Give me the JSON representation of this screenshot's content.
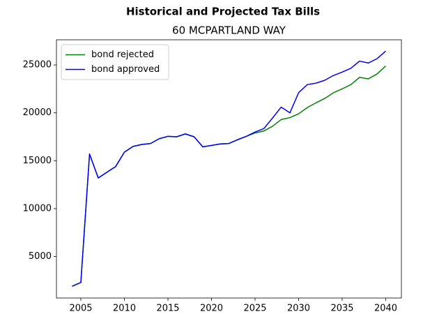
{
  "chart_data": {
    "type": "line",
    "title": "Historical and Projected Tax Bills",
    "subtitle": "60 MCPARTLAND WAY",
    "x": [
      2004,
      2005,
      2006,
      2007,
      2008,
      2009,
      2010,
      2011,
      2012,
      2013,
      2014,
      2015,
      2016,
      2017,
      2018,
      2019,
      2020,
      2021,
      2022,
      2023,
      2024,
      2025,
      2026,
      2027,
      2028,
      2029,
      2030,
      2031,
      2032,
      2033,
      2034,
      2035,
      2036,
      2037,
      2038,
      2039,
      2040
    ],
    "series": [
      {
        "name": "bond rejected",
        "color": "#008000",
        "values": [
          1900,
          2300,
          15700,
          13200,
          13800,
          14400,
          15900,
          16500,
          16700,
          16800,
          17300,
          17550,
          17500,
          17800,
          17500,
          16450,
          16600,
          16750,
          16800,
          17200,
          17550,
          17900,
          18100,
          18600,
          19300,
          19500,
          19900,
          20550,
          21050,
          21500,
          22100,
          22500,
          22950,
          23700,
          23550,
          24050,
          24900
        ]
      },
      {
        "name": "bond approved",
        "color": "#0000ff",
        "values": [
          1900,
          2300,
          15700,
          13200,
          13800,
          14400,
          15900,
          16500,
          16700,
          16800,
          17300,
          17550,
          17500,
          17800,
          17500,
          16450,
          16600,
          16750,
          16800,
          17200,
          17550,
          18000,
          18350,
          19450,
          20600,
          20000,
          22100,
          22950,
          23100,
          23400,
          23900,
          24250,
          24650,
          25400,
          25200,
          25650,
          26450
        ]
      }
    ],
    "xlim": [
      2002.2,
      2041.8
    ],
    "xticks": [
      2005,
      2010,
      2015,
      2020,
      2025,
      2030,
      2035,
      2040
    ],
    "ylim": [
      675,
      27625
    ],
    "yticks": [
      5000,
      10000,
      15000,
      20000,
      25000
    ],
    "grid": false,
    "legend": "upper-left"
  }
}
